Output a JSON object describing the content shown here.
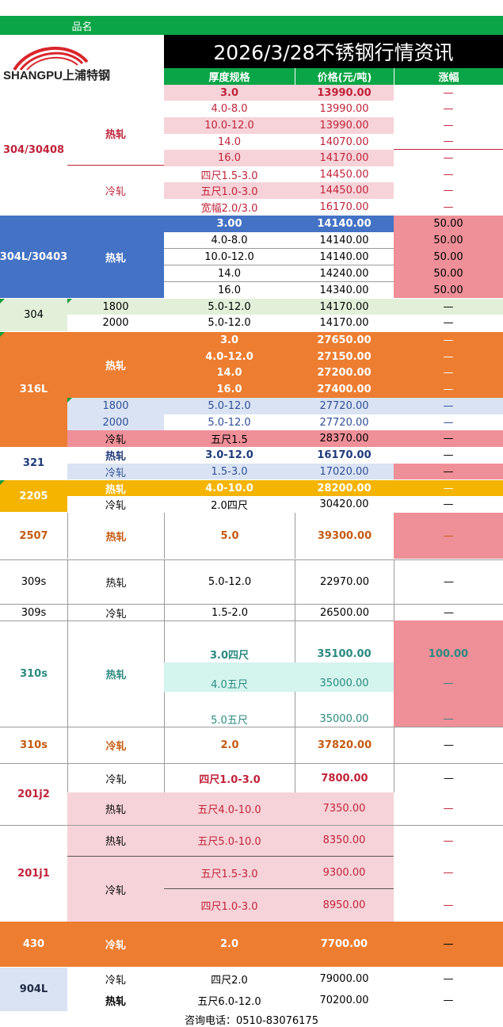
{
  "header": {
    "pinming": "品名",
    "title": "2026/3/28不锈钢行情资讯",
    "col_spec": "厚度规格",
    "col_price": "价格(元/吨)",
    "col_change": "涨幅",
    "logo_text": "SHANGPU上浦特钢"
  },
  "footer": {
    "contact": "咨询电话：0510-83076175"
  },
  "colors": {
    "green": "#0aa546",
    "blue": "#4472c4",
    "orange": "#ed7d31",
    "yellow": "#f4b400",
    "pink": "#f6d3d9",
    "lightblue": "#dae3f3",
    "red": "#ef8f98",
    "lightgreen": "#e2f0d9",
    "cyan": "#d4f4ee"
  },
  "g304_30408": {
    "grade": "304/30408",
    "hot": "热轧",
    "cold": "冷轧",
    "rows": [
      {
        "spec": "3.0",
        "price": "13990.00",
        "change": "—"
      },
      {
        "spec": "4.0-8.0",
        "price": "13990.00",
        "change": "—"
      },
      {
        "spec": "10.0-12.0",
        "price": "13990.00",
        "change": "—"
      },
      {
        "spec": "14.0",
        "price": "14070.00",
        "change": "—"
      },
      {
        "spec": "16.0",
        "price": "14170.00",
        "change": "—"
      },
      {
        "spec": "四尺1.5-3.0",
        "price": "14450.00",
        "change": "—"
      },
      {
        "spec": "五尺1.0-3.0",
        "price": "14450.00",
        "change": "—"
      },
      {
        "spec": "宽幅2.0/3.0",
        "price": "16170.00",
        "change": "—"
      }
    ]
  },
  "g304l": {
    "grade": "304L/30403",
    "type": "热轧",
    "rows": [
      {
        "spec": "3.00",
        "price": "14140.00",
        "change": "50.00"
      },
      {
        "spec": "4.0-8.0",
        "price": "14140.00",
        "change": "50.00"
      },
      {
        "spec": "10.0-12.0",
        "price": "14140.00",
        "change": "50.00"
      },
      {
        "spec": "14.0",
        "price": "14240.00",
        "change": "50.00"
      },
      {
        "spec": "16.0",
        "price": "14340.00",
        "change": "50.00"
      }
    ]
  },
  "g304": {
    "grade": "304",
    "rows": [
      {
        "type": "1800",
        "spec": "5.0-12.0",
        "price": "14170.00",
        "change": "—"
      },
      {
        "type": "2000",
        "spec": "5.0-12.0",
        "price": "14170.00",
        "change": "—"
      }
    ]
  },
  "g316l": {
    "grade": "316L",
    "hot": "热轧",
    "hot_rows": [
      {
        "spec": "3.0",
        "price": "27650.00",
        "change": "—"
      },
      {
        "spec": "4.0-12.0",
        "price": "27150.00",
        "change": "—"
      },
      {
        "spec": "14.0",
        "price": "27200.00",
        "change": "—"
      },
      {
        "spec": "16.0",
        "price": "27400.00",
        "change": "—"
      }
    ],
    "other_rows": [
      {
        "type": "1800",
        "spec": "5.0-12.0",
        "price": "27720.00",
        "change": "—"
      },
      {
        "type": "2000",
        "spec": "5.0-12.0",
        "price": "27720.00",
        "change": "—"
      },
      {
        "type": "冷轧",
        "spec": "五尺1.5",
        "price": "28370.00",
        "change": "—"
      }
    ]
  },
  "g321": {
    "grade": "321",
    "rows": [
      {
        "type": "热轧",
        "spec": "3.0-12.0",
        "price": "16170.00",
        "change": "—"
      },
      {
        "type": "冷轧",
        "spec": "1.5-3.0",
        "price": "17020.00",
        "change": "—"
      }
    ]
  },
  "g2205": {
    "grade": "2205",
    "rows": [
      {
        "type": "热轧",
        "spec": "4.0-10.0",
        "price": "28200.00",
        "change": "—"
      },
      {
        "type": "冷轧",
        "spec": "2.0四尺",
        "price": "30420.00",
        "change": "—"
      }
    ]
  },
  "g2507": {
    "grade": "2507",
    "type": "热轧",
    "spec": "5.0",
    "price": "39300.00",
    "change": "—"
  },
  "g309s_a": {
    "grade": "309s",
    "type": "热轧",
    "spec": "5.0-12.0",
    "price": "22970.00",
    "change": "—"
  },
  "g309s_b": {
    "grade": "309s",
    "type": "冷轧",
    "spec": "1.5-2.0",
    "price": "26500.00",
    "change": "—"
  },
  "g310s": {
    "grade": "310s",
    "type": "热轧",
    "rows": [
      {
        "spec": "3.0四尺",
        "price": "35100.00",
        "change": "100.00"
      },
      {
        "spec": "4.0五尺",
        "price": "35000.00",
        "change": "—"
      },
      {
        "spec": "5.0五尺",
        "price": "35000.00",
        "change": "—"
      }
    ]
  },
  "g310s_b": {
    "grade": "310s",
    "type": "冷轧",
    "spec": "2.0",
    "price": "37820.00",
    "change": "—"
  },
  "g201j2": {
    "grade": "201j2",
    "rows": [
      {
        "type": "冷轧",
        "spec": "四尺1.0-3.0",
        "price": "7800.00",
        "change": "—"
      },
      {
        "type": "热轧",
        "spec": "五尺4.0-10.0",
        "price": "7350.00",
        "change": "—"
      }
    ]
  },
  "g201j1": {
    "grade": "201j1",
    "hot": "热轧",
    "cold": "冷轧",
    "rows": [
      {
        "spec": "五尺5.0-10.0",
        "price": "8350.00",
        "change": "—"
      },
      {
        "spec": "五尺1.5-3.0",
        "price": "9300.00",
        "change": "—"
      },
      {
        "spec": "四尺1.0-3.0",
        "price": "8950.00",
        "change": "—"
      }
    ]
  },
  "g430": {
    "grade": "430",
    "type": "冷轧",
    "spec": "2.0",
    "price": "7700.00",
    "change": "—"
  },
  "g904l": {
    "grade": "904L",
    "rows": [
      {
        "type": "冷轧",
        "spec": "四尺2.0",
        "price": "79000.00",
        "change": "—"
      },
      {
        "type": "热轧",
        "spec": "五尺6.0-12.0",
        "price": "70200.00",
        "change": "—"
      }
    ]
  }
}
